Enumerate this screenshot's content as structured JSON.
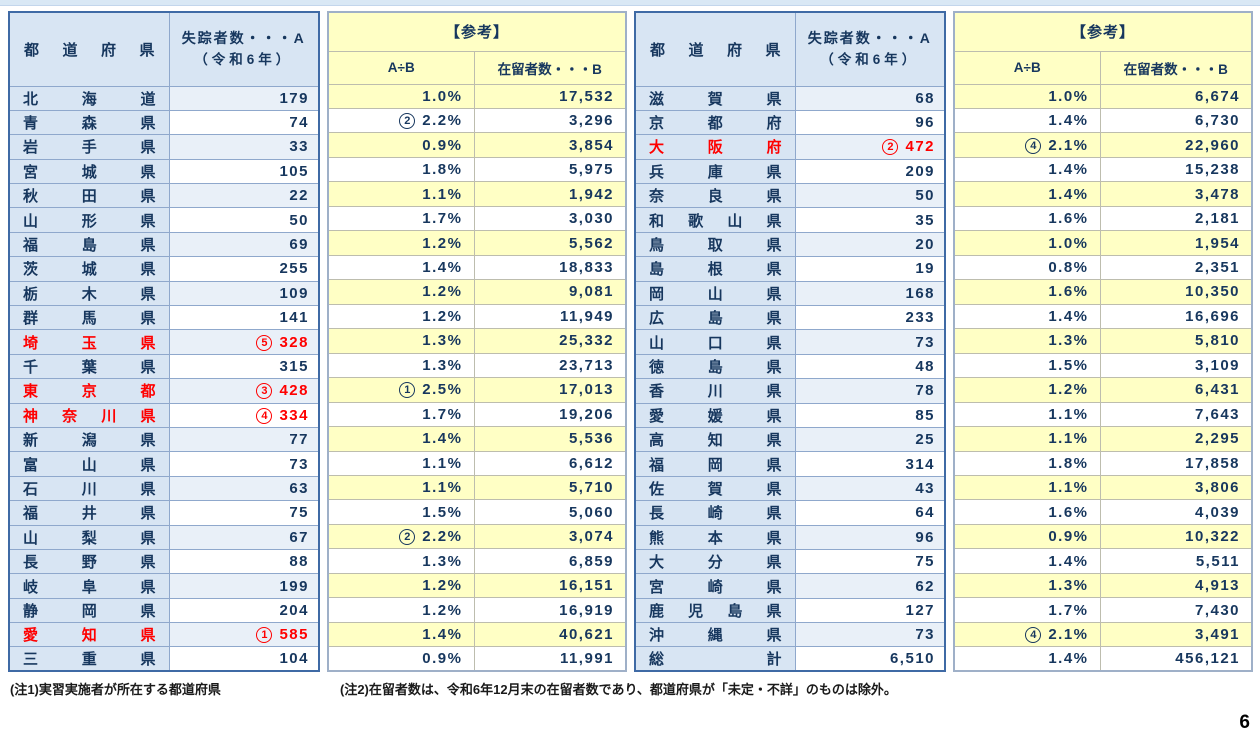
{
  "page_number": "6",
  "notes": {
    "note1": "(注1)実習実施者が所在する都道府県",
    "note2": "(注2)在留者数は、令和6年12月末の在留者数であり、都道府県が「未定・不詳」のものは除外。"
  },
  "headers": {
    "prefecture": "都道府県",
    "missing_line1": "失踪者数・・・A",
    "missing_line2": "（令和6年）",
    "reference": "【参考】",
    "ratio": "A÷B",
    "residents": "在留者数・・・B"
  },
  "colors": {
    "table_border_blue": "#3f6aa5",
    "header_blue": "#d8e5f3",
    "row_alt_blue": "#e9f0f8",
    "reference_yellow": "#ffffc5",
    "highlight_red": "#ff0000",
    "text_navy": "#17375e"
  },
  "groups": {
    "left": {
      "rows": [
        {
          "pref": "北海道",
          "count": "179",
          "red": false,
          "ratio": "1.0%",
          "residents": "17,532"
        },
        {
          "pref": "青森県",
          "count": "74",
          "red": false,
          "ratio": "2.2%",
          "ratio_rank": "2",
          "residents": "3,296"
        },
        {
          "pref": "岩手県",
          "count": "33",
          "red": false,
          "ratio": "0.9%",
          "residents": "3,854"
        },
        {
          "pref": "宮城県",
          "count": "105",
          "red": false,
          "ratio": "1.8%",
          "residents": "5,975"
        },
        {
          "pref": "秋田県",
          "count": "22",
          "red": false,
          "ratio": "1.1%",
          "residents": "1,942"
        },
        {
          "pref": "山形県",
          "count": "50",
          "red": false,
          "ratio": "1.7%",
          "residents": "3,030"
        },
        {
          "pref": "福島県",
          "count": "69",
          "red": false,
          "ratio": "1.2%",
          "residents": "5,562"
        },
        {
          "pref": "茨城県",
          "count": "255",
          "red": false,
          "ratio": "1.4%",
          "residents": "18,833"
        },
        {
          "pref": "栃木県",
          "count": "109",
          "red": false,
          "ratio": "1.2%",
          "residents": "9,081"
        },
        {
          "pref": "群馬県",
          "count": "141",
          "red": false,
          "ratio": "1.2%",
          "residents": "11,949"
        },
        {
          "pref": "埼玉県",
          "count": "328",
          "rank": "5",
          "red": true,
          "ratio": "1.3%",
          "residents": "25,332"
        },
        {
          "pref": "千葉県",
          "count": "315",
          "red": false,
          "ratio": "1.3%",
          "residents": "23,713"
        },
        {
          "pref": "東京都",
          "count": "428",
          "rank": "3",
          "red": true,
          "ratio": "2.5%",
          "ratio_rank": "1",
          "residents": "17,013"
        },
        {
          "pref": "神奈川県",
          "count": "334",
          "rank": "4",
          "red": true,
          "ratio": "1.7%",
          "residents": "19,206"
        },
        {
          "pref": "新潟県",
          "count": "77",
          "red": false,
          "ratio": "1.4%",
          "residents": "5,536"
        },
        {
          "pref": "富山県",
          "count": "73",
          "red": false,
          "ratio": "1.1%",
          "residents": "6,612"
        },
        {
          "pref": "石川県",
          "count": "63",
          "red": false,
          "ratio": "1.1%",
          "residents": "5,710"
        },
        {
          "pref": "福井県",
          "count": "75",
          "red": false,
          "ratio": "1.5%",
          "residents": "5,060"
        },
        {
          "pref": "山梨県",
          "count": "67",
          "red": false,
          "ratio": "2.2%",
          "ratio_rank": "2",
          "residents": "3,074"
        },
        {
          "pref": "長野県",
          "count": "88",
          "red": false,
          "ratio": "1.3%",
          "residents": "6,859"
        },
        {
          "pref": "岐阜県",
          "count": "199",
          "red": false,
          "ratio": "1.2%",
          "residents": "16,151"
        },
        {
          "pref": "静岡県",
          "count": "204",
          "red": false,
          "ratio": "1.2%",
          "residents": "16,919"
        },
        {
          "pref": "愛知県",
          "count": "585",
          "rank": "1",
          "red": true,
          "ratio": "1.4%",
          "residents": "40,621"
        },
        {
          "pref": "三重県",
          "count": "104",
          "red": false,
          "ratio": "0.9%",
          "residents": "11,991"
        }
      ]
    },
    "right": {
      "rows": [
        {
          "pref": "滋賀県",
          "count": "68",
          "red": false,
          "ratio": "1.0%",
          "residents": "6,674"
        },
        {
          "pref": "京都府",
          "count": "96",
          "red": false,
          "ratio": "1.4%",
          "residents": "6,730"
        },
        {
          "pref": "大阪府",
          "count": "472",
          "rank": "2",
          "red": true,
          "ratio": "2.1%",
          "ratio_rank": "4",
          "residents": "22,960"
        },
        {
          "pref": "兵庫県",
          "count": "209",
          "red": false,
          "ratio": "1.4%",
          "residents": "15,238"
        },
        {
          "pref": "奈良県",
          "count": "50",
          "red": false,
          "ratio": "1.4%",
          "residents": "3,478"
        },
        {
          "pref": "和歌山県",
          "count": "35",
          "red": false,
          "ratio": "1.6%",
          "residents": "2,181"
        },
        {
          "pref": "鳥取県",
          "count": "20",
          "red": false,
          "ratio": "1.0%",
          "residents": "1,954"
        },
        {
          "pref": "島根県",
          "count": "19",
          "red": false,
          "ratio": "0.8%",
          "residents": "2,351"
        },
        {
          "pref": "岡山県",
          "count": "168",
          "red": false,
          "ratio": "1.6%",
          "residents": "10,350"
        },
        {
          "pref": "広島県",
          "count": "233",
          "red": false,
          "ratio": "1.4%",
          "residents": "16,696"
        },
        {
          "pref": "山口県",
          "count": "73",
          "red": false,
          "ratio": "1.3%",
          "residents": "5,810"
        },
        {
          "pref": "徳島県",
          "count": "48",
          "red": false,
          "ratio": "1.5%",
          "residents": "3,109"
        },
        {
          "pref": "香川県",
          "count": "78",
          "red": false,
          "ratio": "1.2%",
          "residents": "6,431"
        },
        {
          "pref": "愛媛県",
          "count": "85",
          "red": false,
          "ratio": "1.1%",
          "residents": "7,643"
        },
        {
          "pref": "高知県",
          "count": "25",
          "red": false,
          "ratio": "1.1%",
          "residents": "2,295"
        },
        {
          "pref": "福岡県",
          "count": "314",
          "red": false,
          "ratio": "1.8%",
          "residents": "17,858"
        },
        {
          "pref": "佐賀県",
          "count": "43",
          "red": false,
          "ratio": "1.1%",
          "residents": "3,806"
        },
        {
          "pref": "長崎県",
          "count": "64",
          "red": false,
          "ratio": "1.6%",
          "residents": "4,039"
        },
        {
          "pref": "熊本県",
          "count": "96",
          "red": false,
          "ratio": "0.9%",
          "residents": "10,322"
        },
        {
          "pref": "大分県",
          "count": "75",
          "red": false,
          "ratio": "1.4%",
          "residents": "5,511"
        },
        {
          "pref": "宮崎県",
          "count": "62",
          "red": false,
          "ratio": "1.3%",
          "residents": "4,913"
        },
        {
          "pref": "鹿児島県",
          "count": "127",
          "red": false,
          "ratio": "1.7%",
          "residents": "7,430"
        },
        {
          "pref": "沖縄県",
          "count": "73",
          "red": false,
          "ratio": "2.1%",
          "ratio_rank": "4",
          "residents": "3,491"
        },
        {
          "pref": "総計",
          "count": "6,510",
          "red": false,
          "ratio": "1.4%",
          "residents": "456,121"
        }
      ]
    }
  }
}
